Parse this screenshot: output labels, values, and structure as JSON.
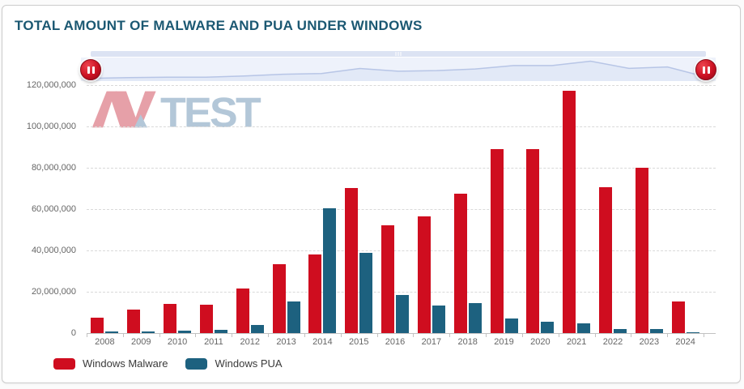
{
  "page": {
    "title": "TOTAL AMOUNT OF MALWARE AND PUA UNDER WINDOWS"
  },
  "watermark": {
    "av": "AV",
    "test": "TEST"
  },
  "navigator": {
    "left_handle_icon": "pause-icon",
    "right_handle_icon": "pause-icon",
    "grip_icon": "grip-dots-icon"
  },
  "colors": {
    "malware_red": "#cf0d1f",
    "pua_blue": "#1d617f",
    "title_text": "#1b5872",
    "axis_text": "#666666",
    "grid_line": "#d9d9d9",
    "axis_line": "#c2c2c2",
    "nav_track": "#dce3f3",
    "nav_band": "#eef2fb",
    "nav_area_fill": "#e2e9f7",
    "nav_area_line": "#b7c5e6",
    "watermark_pink": "#e2909a",
    "watermark_blue": "#a6bed2"
  },
  "chart_data": {
    "type": "bar",
    "title": "TOTAL AMOUNT OF MALWARE AND PUA UNDER WINDOWS",
    "categories": [
      "2008",
      "2009",
      "2010",
      "2011",
      "2012",
      "2013",
      "2014",
      "2015",
      "2016",
      "2017",
      "2018",
      "2019",
      "2020",
      "2021",
      "2022",
      "2023",
      "2024"
    ],
    "series": [
      {
        "name": "Windows Malware",
        "color": "#cf0d1f",
        "values": [
          7300000,
          11200000,
          14300000,
          13900000,
          21600000,
          33200000,
          38200000,
          70100000,
          52300000,
          56600000,
          67300000,
          89000000,
          89100000,
          117200000,
          70700000,
          79900000,
          15400000
        ]
      },
      {
        "name": "Windows PUA",
        "color": "#1d617f",
        "values": [
          600000,
          800000,
          1000000,
          1600000,
          4000000,
          15200000,
          60500000,
          38900000,
          18500000,
          13300000,
          14500000,
          6900000,
          5400000,
          4600000,
          2100000,
          1900000,
          400000
        ]
      }
    ],
    "ylim": [
      0,
      120000000
    ],
    "yticks": [
      {
        "value": 0,
        "label": "0"
      },
      {
        "value": 20000000,
        "label": "20,000,000"
      },
      {
        "value": 40000000,
        "label": "40,000,000"
      },
      {
        "value": 60000000,
        "label": "60,000,000"
      },
      {
        "value": 80000000,
        "label": "80,000,000"
      },
      {
        "value": 100000000,
        "label": "100,000,000"
      },
      {
        "value": 120000000,
        "label": "120,000,000"
      }
    ],
    "grid": "dashed-horizontal",
    "legend_position": "bottom-left",
    "xlabel": "",
    "ylabel": ""
  }
}
